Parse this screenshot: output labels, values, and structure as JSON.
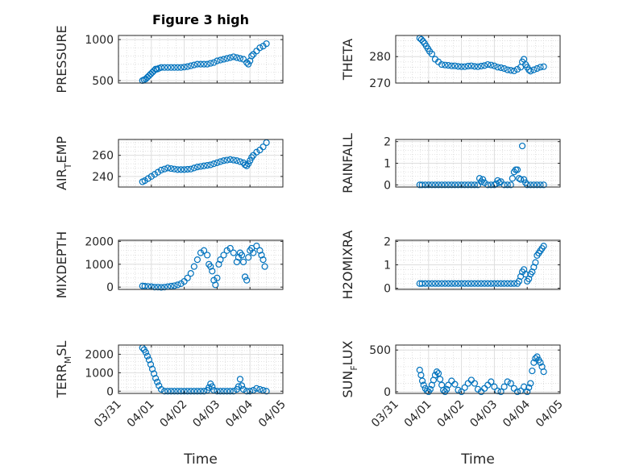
{
  "figure": {
    "title": "Figure 3 high",
    "marker_color": "#0072bd",
    "xlabel": "Time"
  },
  "chart_data": [
    {
      "type": "scatter",
      "ylabel": "PRESSURE",
      "ylabel_main": "PRESSURE",
      "ylabel_sub": "",
      "ylabel_tail": "",
      "ylim": [
        470,
        1050
      ],
      "yticks": [
        500,
        1000
      ],
      "x_ticklabels": [
        "03/31",
        "04/01",
        "04/02",
        "04/03",
        "04/04",
        "04/05"
      ],
      "grid": true,
      "x": [
        0.73,
        0.78,
        0.83,
        0.88,
        0.93,
        0.98,
        1.03,
        1.08,
        1.13,
        1.18,
        1.23,
        1.3,
        1.4,
        1.5,
        1.6,
        1.7,
        1.8,
        1.9,
        2.0,
        2.1,
        2.2,
        2.3,
        2.4,
        2.5,
        2.6,
        2.7,
        2.8,
        2.9,
        3.0,
        3.1,
        3.2,
        3.3,
        3.4,
        3.5,
        3.6,
        3.7,
        3.8,
        3.9,
        3.95,
        4.0,
        4.05,
        4.1,
        4.2,
        4.3,
        4.4,
        4.5
      ],
      "y": [
        500,
        510,
        520,
        540,
        560,
        580,
        600,
        620,
        640,
        640,
        650,
        660,
        660,
        660,
        660,
        660,
        660,
        660,
        665,
        670,
        680,
        690,
        700,
        700,
        700,
        700,
        710,
        720,
        740,
        750,
        760,
        770,
        780,
        790,
        780,
        770,
        760,
        720,
        700,
        740,
        800,
        820,
        860,
        900,
        920,
        950
      ]
    },
    {
      "type": "scatter",
      "ylabel": "THETA",
      "ylabel_main": "THETA",
      "ylabel_sub": "",
      "ylabel_tail": "",
      "ylim": [
        270,
        288
      ],
      "yticks": [
        270,
        280
      ],
      "x_ticklabels": [
        "03/31",
        "04/01",
        "04/02",
        "04/03",
        "04/04",
        "04/05"
      ],
      "grid": true,
      "x": [
        0.73,
        0.78,
        0.83,
        0.88,
        0.93,
        0.98,
        1.03,
        1.1,
        1.2,
        1.3,
        1.4,
        1.5,
        1.6,
        1.7,
        1.8,
        1.9,
        2.0,
        2.1,
        2.2,
        2.3,
        2.4,
        2.5,
        2.6,
        2.7,
        2.8,
        2.9,
        3.0,
        3.1,
        3.2,
        3.3,
        3.4,
        3.5,
        3.6,
        3.7,
        3.8,
        3.85,
        3.9,
        3.95,
        4.0,
        4.05,
        4.1,
        4.2,
        4.3,
        4.4,
        4.5
      ],
      "y": [
        287,
        286.5,
        285.8,
        285,
        284,
        283,
        282,
        281,
        279,
        278,
        277,
        276.8,
        276.7,
        276.5,
        276.5,
        276.3,
        276.2,
        276.2,
        276.4,
        276.5,
        276.3,
        276.2,
        276.4,
        276.6,
        277,
        276.8,
        276.5,
        276,
        275.8,
        275.5,
        275,
        274.8,
        274.6,
        275.2,
        276,
        278,
        279,
        277,
        276,
        275,
        274.5,
        275,
        275.5,
        276,
        276.2
      ]
    },
    {
      "type": "scatter",
      "ylabel": "AIR_TEMP",
      "ylabel_main": "AIR",
      "ylabel_sub": "T",
      "ylabel_tail": "EMP",
      "ylim": [
        230,
        275
      ],
      "yticks": [
        240,
        260
      ],
      "x_ticklabels": [
        "03/31",
        "04/01",
        "04/02",
        "04/03",
        "04/04",
        "04/05"
      ],
      "grid": true,
      "x": [
        0.73,
        0.8,
        0.9,
        1.0,
        1.1,
        1.2,
        1.3,
        1.4,
        1.5,
        1.6,
        1.7,
        1.8,
        1.9,
        2.0,
        2.1,
        2.2,
        2.3,
        2.4,
        2.5,
        2.6,
        2.7,
        2.8,
        2.9,
        3.0,
        3.1,
        3.2,
        3.3,
        3.4,
        3.5,
        3.6,
        3.7,
        3.8,
        3.85,
        3.9,
        3.95,
        4.0,
        4.05,
        4.1,
        4.2,
        4.3,
        4.4,
        4.5
      ],
      "y": [
        235,
        236,
        238,
        240,
        242,
        244,
        246,
        247,
        248,
        247.5,
        247,
        246.5,
        246.5,
        246.5,
        246.8,
        247,
        248,
        249,
        249.5,
        250,
        250.5,
        251,
        252,
        253,
        254,
        255,
        255.5,
        256,
        255.5,
        255,
        254,
        253,
        251,
        250,
        252,
        255,
        258,
        260,
        263,
        265,
        268,
        272
      ]
    },
    {
      "type": "scatter",
      "ylabel": "RAINFALL",
      "ylabel_main": "RAINFALL",
      "ylabel_sub": "",
      "ylabel_tail": "",
      "ylim": [
        -0.1,
        2.1
      ],
      "yticks": [
        0,
        1,
        2
      ],
      "x_ticklabels": [
        "03/31",
        "04/01",
        "04/02",
        "04/03",
        "04/04",
        "04/05"
      ],
      "grid": true,
      "x": [
        0.73,
        0.8,
        0.9,
        1.0,
        1.1,
        1.2,
        1.3,
        1.4,
        1.5,
        1.6,
        1.7,
        1.8,
        1.9,
        2.0,
        2.1,
        2.2,
        2.3,
        2.4,
        2.5,
        2.55,
        2.6,
        2.65,
        2.7,
        2.8,
        2.9,
        3.0,
        3.05,
        3.1,
        3.15,
        3.2,
        3.3,
        3.4,
        3.5,
        3.55,
        3.6,
        3.65,
        3.7,
        3.75,
        3.8,
        3.85,
        3.9,
        3.95,
        4.0,
        4.1,
        4.2,
        4.3,
        4.4,
        4.5
      ],
      "y": [
        0,
        0,
        0,
        0,
        0,
        0,
        0,
        0,
        0,
        0,
        0,
        0,
        0,
        0,
        0,
        0,
        0,
        0,
        0,
        0.3,
        0.15,
        0.25,
        0.1,
        0,
        0,
        0,
        0.05,
        0.2,
        0.1,
        0.15,
        0,
        0,
        0,
        0.3,
        0.6,
        0.7,
        0.7,
        0.3,
        0.25,
        1.8,
        0.25,
        0.1,
        0,
        0,
        0,
        0,
        0,
        0
      ]
    },
    {
      "type": "scatter",
      "ylabel": "MIXDEPTH",
      "ylabel_main": "MIXDEPTH",
      "ylabel_sub": "",
      "ylabel_tail": "",
      "ylim": [
        -100,
        2050
      ],
      "yticks": [
        0,
        1000,
        2000
      ],
      "x_ticklabels": [
        "03/31",
        "04/01",
        "04/02",
        "04/03",
        "04/04",
        "04/05"
      ],
      "grid": true,
      "x": [
        0.73,
        0.8,
        0.9,
        1.0,
        1.1,
        1.2,
        1.3,
        1.4,
        1.5,
        1.6,
        1.7,
        1.8,
        1.9,
        2.0,
        2.1,
        2.2,
        2.3,
        2.4,
        2.5,
        2.6,
        2.7,
        2.75,
        2.8,
        2.85,
        2.9,
        2.95,
        3.0,
        3.05,
        3.1,
        3.2,
        3.3,
        3.4,
        3.5,
        3.6,
        3.65,
        3.7,
        3.75,
        3.8,
        3.85,
        3.9,
        3.95,
        4.0,
        4.05,
        4.1,
        4.2,
        4.3,
        4.35,
        4.4,
        4.45
      ],
      "y": [
        50,
        40,
        30,
        20,
        0,
        0,
        -10,
        0,
        20,
        40,
        60,
        100,
        150,
        250,
        400,
        600,
        900,
        1200,
        1500,
        1600,
        1400,
        1000,
        900,
        700,
        300,
        100,
        400,
        1000,
        1200,
        1400,
        1600,
        1700,
        1500,
        1100,
        1300,
        1500,
        1400,
        1100,
        450,
        300,
        1300,
        1600,
        1700,
        1500,
        1800,
        1600,
        1400,
        1200,
        900
      ]
    },
    {
      "type": "scatter",
      "ylabel": "H2OMIXRA",
      "ylabel_main": "H2OMIXRA",
      "ylabel_sub": "",
      "ylabel_tail": "",
      "ylim": [
        -0.05,
        2.05
      ],
      "yticks": [
        0,
        1,
        2
      ],
      "x_ticklabels": [
        "03/31",
        "04/01",
        "04/02",
        "04/03",
        "04/04",
        "04/05"
      ],
      "grid": true,
      "x": [
        0.73,
        0.8,
        0.9,
        1.0,
        1.1,
        1.2,
        1.3,
        1.4,
        1.5,
        1.6,
        1.7,
        1.8,
        1.9,
        2.0,
        2.1,
        2.2,
        2.3,
        2.4,
        2.5,
        2.6,
        2.7,
        2.8,
        2.9,
        3.0,
        3.1,
        3.2,
        3.3,
        3.4,
        3.5,
        3.6,
        3.7,
        3.75,
        3.8,
        3.85,
        3.9,
        3.95,
        4.0,
        4.05,
        4.1,
        4.15,
        4.2,
        4.25,
        4.3,
        4.35,
        4.4,
        4.45,
        4.5
      ],
      "y": [
        0.2,
        0.2,
        0.2,
        0.2,
        0.2,
        0.2,
        0.2,
        0.2,
        0.2,
        0.2,
        0.2,
        0.2,
        0.2,
        0.2,
        0.2,
        0.2,
        0.2,
        0.2,
        0.2,
        0.2,
        0.2,
        0.2,
        0.2,
        0.2,
        0.2,
        0.2,
        0.2,
        0.2,
        0.2,
        0.2,
        0.2,
        0.3,
        0.5,
        0.7,
        0.8,
        0.6,
        0.3,
        0.4,
        0.6,
        0.7,
        0.9,
        1.1,
        1.4,
        1.5,
        1.6,
        1.7,
        1.8
      ]
    },
    {
      "type": "scatter",
      "ylabel": "TERR_MSL",
      "ylabel_main": "TERR",
      "ylabel_sub": "M",
      "ylabel_tail": "SL",
      "ylim": [
        -120,
        2500
      ],
      "yticks": [
        0,
        1000,
        2000
      ],
      "x_ticklabels": [
        "03/31",
        "04/01",
        "04/02",
        "04/03",
        "04/04",
        "04/05"
      ],
      "grid": true,
      "x": [
        0.73,
        0.78,
        0.83,
        0.88,
        0.93,
        0.98,
        1.03,
        1.08,
        1.13,
        1.18,
        1.23,
        1.3,
        1.4,
        1.5,
        1.6,
        1.7,
        1.8,
        1.9,
        2.0,
        2.1,
        2.2,
        2.3,
        2.4,
        2.5,
        2.6,
        2.7,
        2.75,
        2.8,
        2.85,
        2.9,
        3.0,
        3.1,
        3.2,
        3.3,
        3.4,
        3.5,
        3.6,
        3.65,
        3.7,
        3.75,
        3.8,
        3.9,
        4.0,
        4.1,
        4.2,
        4.3,
        4.4,
        4.5
      ],
      "y": [
        2350,
        2250,
        2100,
        1900,
        1700,
        1450,
        1200,
        950,
        700,
        500,
        300,
        100,
        0,
        0,
        0,
        0,
        0,
        0,
        0,
        0,
        0,
        0,
        0,
        0,
        0,
        50,
        200,
        400,
        250,
        50,
        0,
        0,
        0,
        0,
        0,
        0,
        100,
        250,
        650,
        300,
        100,
        0,
        0,
        50,
        150,
        100,
        50,
        0
      ]
    },
    {
      "type": "scatter",
      "ylabel": "SUN_FLUX",
      "ylabel_main": "SUN",
      "ylabel_sub": "F",
      "ylabel_tail": "LUX",
      "ylim": [
        -20,
        560
      ],
      "yticks": [
        0,
        500
      ],
      "x_ticklabels": [
        "03/31",
        "04/01",
        "04/02",
        "04/03",
        "04/04",
        "04/05"
      ],
      "grid": true,
      "x": [
        0.73,
        0.77,
        0.81,
        0.85,
        0.9,
        0.95,
        1.0,
        1.05,
        1.1,
        1.15,
        1.2,
        1.25,
        1.3,
        1.35,
        1.4,
        1.45,
        1.5,
        1.55,
        1.6,
        1.7,
        1.8,
        1.9,
        2.0,
        2.1,
        2.2,
        2.3,
        2.4,
        2.5,
        2.6,
        2.7,
        2.8,
        2.9,
        3.0,
        3.1,
        3.2,
        3.3,
        3.4,
        3.5,
        3.6,
        3.7,
        3.8,
        3.9,
        4.0,
        4.05,
        4.1,
        4.15,
        4.2,
        4.25,
        4.3,
        4.35,
        4.4,
        4.45,
        4.5
      ],
      "y": [
        260,
        200,
        130,
        80,
        40,
        10,
        0,
        30,
        80,
        140,
        200,
        240,
        220,
        150,
        80,
        20,
        0,
        30,
        80,
        130,
        90,
        20,
        0,
        50,
        100,
        140,
        100,
        30,
        0,
        40,
        80,
        120,
        60,
        10,
        0,
        60,
        120,
        100,
        40,
        0,
        10,
        60,
        0,
        50,
        100,
        250,
        350,
        400,
        420,
        380,
        350,
        300,
        240
      ]
    }
  ]
}
